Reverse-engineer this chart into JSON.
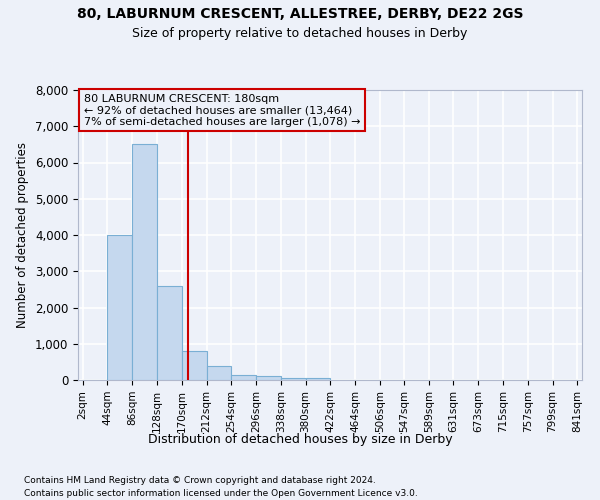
{
  "title_main": "80, LABURNUM CRESCENT, ALLESTREE, DERBY, DE22 2GS",
  "title_sub": "Size of property relative to detached houses in Derby",
  "xlabel": "Distribution of detached houses by size in Derby",
  "ylabel": "Number of detached properties",
  "footer1": "Contains HM Land Registry data © Crown copyright and database right 2024.",
  "footer2": "Contains public sector information licensed under the Open Government Licence v3.0.",
  "annotation_line0": "80 LABURNUM CRESCENT: 180sqm",
  "annotation_line1": "← 92% of detached houses are smaller (13,464)",
  "annotation_line2": "7% of semi-detached houses are larger (1,078) →",
  "bar_edges": [
    2,
    44,
    86,
    128,
    170,
    212,
    254,
    296,
    338,
    380,
    422,
    464,
    506,
    547,
    589,
    631,
    673,
    715,
    757,
    799,
    841
  ],
  "bar_heights": [
    0,
    4000,
    6500,
    2600,
    800,
    400,
    150,
    100,
    50,
    50,
    0,
    0,
    0,
    0,
    0,
    0,
    0,
    0,
    0,
    0
  ],
  "bar_color": "#c5d8ee",
  "bar_edge_color": "#7aafd4",
  "vline_color": "#cc0000",
  "vline_x": 180,
  "annotation_box_color": "#cc0000",
  "background_color": "#edf1f9",
  "grid_color": "#ffffff",
  "ylim": [
    0,
    8000
  ],
  "yticks": [
    0,
    1000,
    2000,
    3000,
    4000,
    5000,
    6000,
    7000,
    8000
  ]
}
